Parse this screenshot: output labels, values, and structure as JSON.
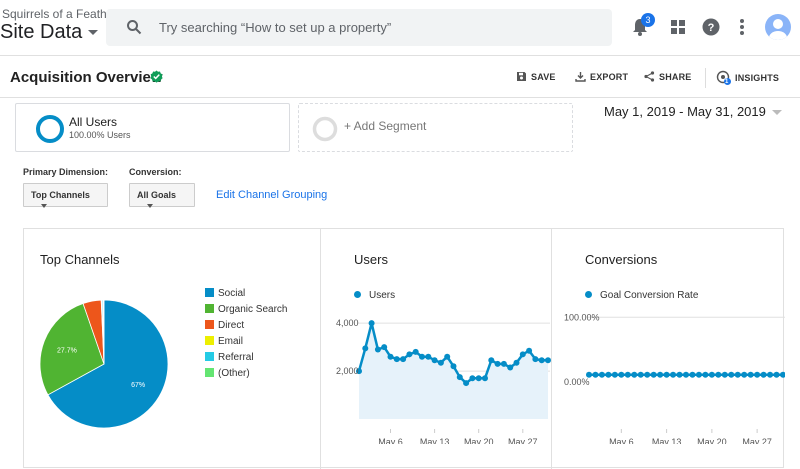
{
  "header": {
    "account": "Squirrels of a Feather",
    "property": "Site Data",
    "search_placeholder": "Try searching “How to set up a property”",
    "notification_count": "3"
  },
  "titlebar": {
    "title": "Acquisition Overview",
    "save": "SAVE",
    "export": "EXPORT",
    "share": "SHARE",
    "insights": "INSIGHTS",
    "insights_count": "1"
  },
  "segments": {
    "all_users": "All Users",
    "all_users_pct": "100.00% Users",
    "add_segment": "+ Add Segment"
  },
  "date_range": "May 1, 2019 - May 31, 2019",
  "controls": {
    "primary_dimension_label": "Primary Dimension:",
    "primary_dimension_value": "Top Channels",
    "conversion_label": "Conversion:",
    "conversion_value": "All Goals",
    "edit_link": "Edit Channel Grouping"
  },
  "colors": {
    "social": "#058dc7",
    "organic_search": "#50b432",
    "direct": "#ed561b",
    "email": "#edef00",
    "referral": "#24cbe5",
    "other": "#64e572"
  },
  "chart_data": [
    {
      "type": "pie",
      "title": "Top Channels",
      "categories": [
        "Social",
        "Organic Search",
        "Direct",
        "Email",
        "Referral",
        "(Other)"
      ],
      "values": [
        67,
        27.7,
        4.6,
        0.2,
        0.3,
        0.2
      ],
      "slice_labels": [
        "67%",
        "27.7%",
        "",
        "",
        "",
        ""
      ],
      "legend_position": "right"
    },
    {
      "type": "area",
      "title": "Users",
      "series": [
        {
          "name": "Users",
          "values": [
            2000,
            2950,
            4000,
            2900,
            3000,
            2600,
            2500,
            2500,
            2700,
            2800,
            2600,
            2600,
            2450,
            2350,
            2600,
            2200,
            1750,
            1500,
            1700,
            1700,
            1700,
            2450,
            2300,
            2300,
            2150,
            2350,
            2700,
            2850,
            2500,
            2450,
            2450
          ]
        }
      ],
      "x_tick_labels": [
        "May 6",
        "May 13",
        "May 20",
        "May 27"
      ],
      "x_tick_days": [
        6,
        13,
        20,
        27
      ],
      "y_tick_labels": [
        "4,000",
        "2,000"
      ],
      "y_ticks": [
        4000,
        2000
      ],
      "ylim": [
        0,
        4800
      ]
    },
    {
      "type": "line",
      "title": "Conversions",
      "series": [
        {
          "name": "Goal Conversion Rate",
          "values": [
            0,
            0,
            0,
            0,
            0,
            0,
            0,
            0,
            0,
            0,
            0,
            0,
            0,
            0,
            0,
            0,
            0,
            0,
            0,
            0,
            0,
            0,
            0,
            0,
            0,
            0,
            0,
            0,
            0,
            0,
            0
          ]
        }
      ],
      "x_tick_labels": [
        "May 6",
        "May 13",
        "May 20",
        "May 27"
      ],
      "x_tick_days": [
        6,
        13,
        20,
        27
      ],
      "y_tick_labels": [
        "100.00%",
        "0.00%"
      ],
      "ylim": [
        -1,
        1.6
      ]
    }
  ]
}
